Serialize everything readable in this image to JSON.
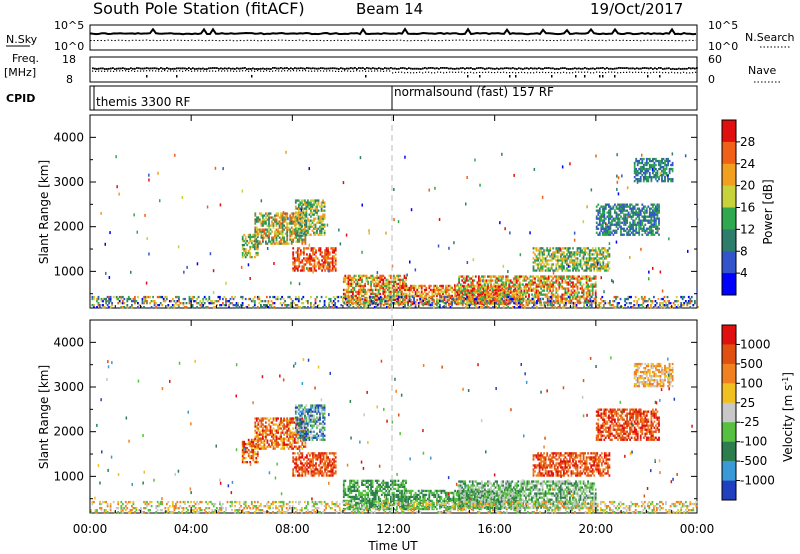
{
  "header": {
    "title": "South Pole Station (fitACF)",
    "beam": "Beam 14",
    "date": "19/Oct/2017"
  },
  "ancillary": {
    "nsky_label": "N.Sky",
    "nsky_ticks": [
      "10^5",
      "10^0"
    ],
    "nsearch_label": "N.Search",
    "nsearch_ticks": [
      "10^5",
      "10^0"
    ],
    "freq_label": "Freq.",
    "freq_unit": "[MHz]",
    "freq_ticks": [
      "18",
      "8"
    ],
    "nave_label": "Nave",
    "nave_ticks": [
      "60",
      "0"
    ],
    "cpid_label": "CPID",
    "cpid_segments": [
      {
        "name": "themis 3300 RF",
        "start_hour": 0
      },
      {
        "name": "normalsound (fast) 157 RF",
        "start_hour": 12
      }
    ]
  },
  "chart_data": [
    {
      "type": "heatmap",
      "name": "power",
      "ylabel": "Slant Range [km]",
      "ylim": [
        180,
        4500
      ],
      "yticks": [
        "1000",
        "2000",
        "3000",
        "4000"
      ],
      "xlim": [
        0,
        24
      ],
      "xticks": [
        "00:00",
        "04:00",
        "08:00",
        "12:00",
        "16:00",
        "20:00",
        "00:00"
      ],
      "colorbar_label": "Power [dB]",
      "colorbar_ticks": [
        "28",
        "24",
        "20",
        "16",
        "12",
        "8",
        "4"
      ],
      "colors": [
        "#0000ff",
        "#3355cc",
        "#2e7d6a",
        "#2fa84f",
        "#c8d23a",
        "#f0a01e",
        "#f06018",
        "#e01010"
      ],
      "scatter_regions": [
        {
          "t": [
            6.0,
            6.6
          ],
          "r": [
            1300,
            1800
          ],
          "level": [
            2,
            5
          ]
        },
        {
          "t": [
            6.5,
            8.5
          ],
          "r": [
            1600,
            2300
          ],
          "level": [
            2,
            6
          ]
        },
        {
          "t": [
            8.0,
            9.7
          ],
          "r": [
            1000,
            1500
          ],
          "level": [
            5,
            7
          ]
        },
        {
          "t": [
            8.1,
            9.3
          ],
          "r": [
            1800,
            2600
          ],
          "level": [
            2,
            5
          ]
        },
        {
          "t": [
            10.0,
            12.5
          ],
          "r": [
            250,
            900
          ],
          "level": [
            3,
            7
          ]
        },
        {
          "t": [
            12.3,
            17.0
          ],
          "r": [
            250,
            700
          ],
          "level": [
            4,
            7
          ]
        },
        {
          "t": [
            14.5,
            20.0
          ],
          "r": [
            280,
            900
          ],
          "level": [
            3,
            7
          ]
        },
        {
          "t": [
            17.5,
            20.5
          ],
          "r": [
            1000,
            1500
          ],
          "level": [
            2,
            5
          ]
        },
        {
          "t": [
            20.0,
            22.5
          ],
          "r": [
            1800,
            2500
          ],
          "level": [
            1,
            3
          ]
        },
        {
          "t": [
            21.5,
            23.0
          ],
          "r": [
            3000,
            3500
          ],
          "level": [
            1,
            3
          ]
        },
        {
          "t": [
            0.0,
            24.0
          ],
          "r": [
            180,
            420
          ],
          "level": [
            0,
            6
          ]
        }
      ]
    },
    {
      "type": "heatmap",
      "name": "velocity",
      "ylabel": "Slant Range [km]",
      "ylim": [
        180,
        4500
      ],
      "yticks": [
        "1000",
        "2000",
        "3000",
        "4000"
      ],
      "xlim": [
        0,
        24
      ],
      "xticks": [
        "00:00",
        "04:00",
        "08:00",
        "12:00",
        "16:00",
        "20:00",
        "00:00"
      ],
      "xlabel": "Time UT",
      "colorbar_label": "Velocity [m s",
      "colorbar_label_sup": "-1",
      "colorbar_label_end": "]",
      "colorbar_ticks": [
        "1000",
        "500",
        "100",
        "25",
        "-25",
        "-100",
        "-500",
        "-1000"
      ],
      "colors": [
        "#2040c0",
        "#3a9ad8",
        "#2e7d4f",
        "#58c040",
        "#c8c8c8",
        "#f0c020",
        "#f08020",
        "#e05010",
        "#e01010"
      ],
      "scatter_regions": [
        {
          "t": [
            6.0,
            6.6
          ],
          "r": [
            1300,
            1800
          ],
          "level": [
            5,
            8
          ]
        },
        {
          "t": [
            6.5,
            8.5
          ],
          "r": [
            1600,
            2300
          ],
          "level": [
            5,
            8
          ]
        },
        {
          "t": [
            8.0,
            9.7
          ],
          "r": [
            1000,
            1500
          ],
          "level": [
            6,
            8
          ]
        },
        {
          "t": [
            8.1,
            9.3
          ],
          "r": [
            1800,
            2600
          ],
          "level": [
            0,
            4
          ]
        },
        {
          "t": [
            10.0,
            12.5
          ],
          "r": [
            250,
            900
          ],
          "level": [
            2,
            3
          ]
        },
        {
          "t": [
            12.3,
            17.0
          ],
          "r": [
            250,
            700
          ],
          "level": [
            2,
            3
          ]
        },
        {
          "t": [
            14.5,
            20.0
          ],
          "r": [
            280,
            900
          ],
          "level": [
            2,
            4
          ]
        },
        {
          "t": [
            17.5,
            20.5
          ],
          "r": [
            1000,
            1500
          ],
          "level": [
            6,
            8
          ]
        },
        {
          "t": [
            20.0,
            22.5
          ],
          "r": [
            1800,
            2500
          ],
          "level": [
            6,
            8
          ]
        },
        {
          "t": [
            21.5,
            23.0
          ],
          "r": [
            3000,
            3500
          ],
          "level": [
            4,
            6
          ]
        },
        {
          "t": [
            0.0,
            24.0
          ],
          "r": [
            180,
            420
          ],
          "level": [
            3,
            6
          ]
        }
      ]
    }
  ]
}
